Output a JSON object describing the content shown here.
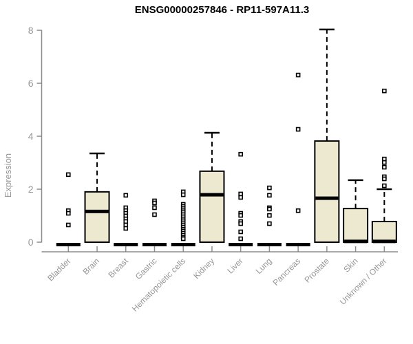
{
  "chart_data": {
    "type": "boxplot",
    "title": "ENSG00000257846 - RP11-597A11.3",
    "ylabel": "Expression",
    "xlabel": "",
    "ylim": [
      0,
      8
    ],
    "yticks": [
      0,
      2,
      4,
      6,
      8
    ],
    "grid": false,
    "legend": "none",
    "categories": [
      "Bladder",
      "Brain",
      "Breast",
      "Gastric",
      "Hematopoietic cells",
      "Kidney",
      "Liver",
      "Lung",
      "Pancreas",
      "Prostate",
      "Skin",
      "Unknown / Other"
    ],
    "boxes": [
      {
        "category": "Bladder",
        "q1": 0,
        "median": 0,
        "q3": 0,
        "whisker_low": 0,
        "whisker_high": 0,
        "outliers": [
          2.55,
          1.19,
          1.09,
          0.65
        ]
      },
      {
        "category": "Brain",
        "q1": 0,
        "median": 1.16,
        "q3": 1.9,
        "whisker_low": 0,
        "whisker_high": 3.35,
        "outliers": []
      },
      {
        "category": "Breast",
        "q1": 0,
        "median": 0,
        "q3": 0,
        "whisker_low": 0,
        "whisker_high": 0,
        "outliers": [
          1.77,
          1.3,
          1.19,
          1.09,
          0.99,
          0.88,
          0.78,
          0.65,
          0.52
        ]
      },
      {
        "category": "Gastric",
        "q1": 0,
        "median": 0,
        "q3": 0,
        "whisker_low": 0,
        "whisker_high": 0,
        "outliers": [
          1.56,
          1.48,
          1.3,
          1.04
        ]
      },
      {
        "category": "Hematopoietic cells",
        "q1": 0,
        "median": 0,
        "q3": 0,
        "whisker_low": 0,
        "whisker_high": 0,
        "outliers": [
          1.9,
          1.79,
          1.43,
          1.35,
          1.27,
          1.19,
          1.12,
          1.04,
          0.96,
          0.88,
          0.81,
          0.73,
          0.65,
          0.57,
          0.49,
          0.42,
          0.34,
          0.26,
          0.18,
          0.13
        ]
      },
      {
        "category": "Kidney",
        "q1": 0,
        "median": 1.79,
        "q3": 2.68,
        "whisker_low": 0,
        "whisker_high": 4.13,
        "outliers": []
      },
      {
        "category": "Liver",
        "q1": 0,
        "median": 0,
        "q3": 0,
        "whisker_low": 0,
        "whisker_high": 0,
        "outliers": [
          3.32,
          1.82,
          1.69,
          1.09,
          1.01,
          0.78,
          0.7,
          0.39,
          0.13
        ]
      },
      {
        "category": "Lung",
        "q1": 0,
        "median": 0,
        "q3": 0,
        "whisker_low": 0,
        "whisker_high": 0,
        "outliers": [
          2.05,
          1.77,
          1.3,
          1.25,
          1.01,
          0.7
        ]
      },
      {
        "category": "Pancreas",
        "q1": 0,
        "median": 0,
        "q3": 0,
        "whisker_low": 0,
        "whisker_high": 0,
        "outliers": [
          6.31,
          4.26,
          1.19
        ]
      },
      {
        "category": "Prostate",
        "q1": 0,
        "median": 1.66,
        "q3": 3.82,
        "whisker_low": 0,
        "whisker_high": 8.03,
        "outliers": []
      },
      {
        "category": "Skin",
        "q1": 0,
        "median": 0.03,
        "q3": 1.27,
        "whisker_low": 0,
        "whisker_high": 2.34,
        "outliers": []
      },
      {
        "category": "Unknown / Other",
        "q1": 0,
        "median": 0.03,
        "q3": 0.78,
        "whisker_low": 0,
        "whisker_high": 2.0,
        "outliers": [
          5.71,
          3.14,
          3.01,
          2.83,
          2.47,
          2.39,
          2.13
        ]
      }
    ],
    "colors": {
      "box_fill": "#EDE8D0",
      "box_stroke": "#000000",
      "median": "#000000",
      "whisker": "#000000",
      "outlier_stroke": "#000000",
      "outlier_fill": "#ffffff",
      "axis": "#8B8B8B",
      "tick_label": "#969696",
      "title": "#000000"
    }
  }
}
